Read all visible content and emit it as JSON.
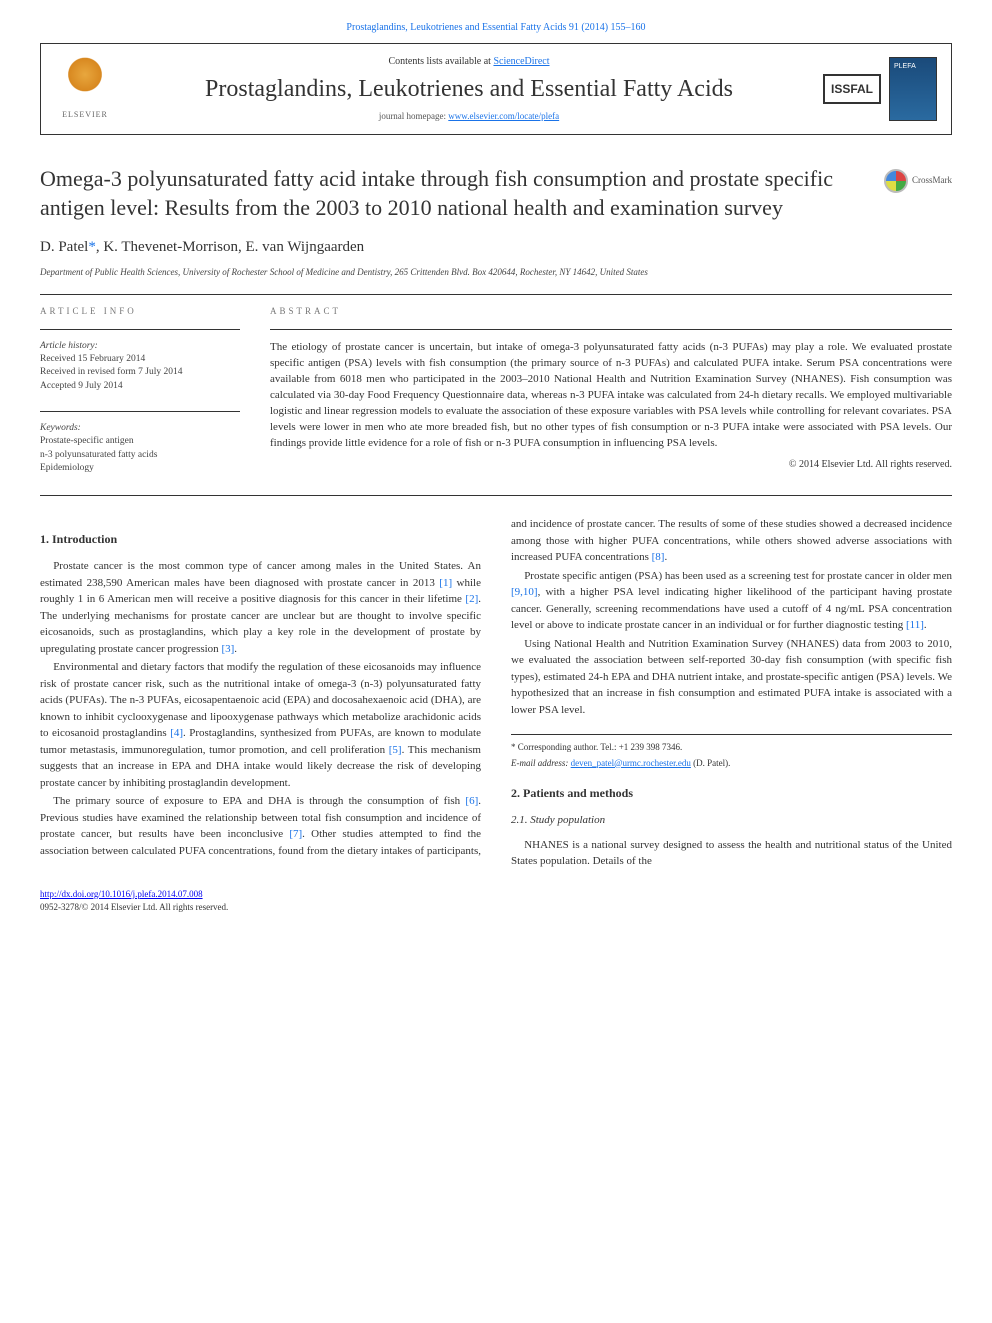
{
  "top_citation": "Prostaglandins, Leukotrienes and Essential Fatty Acids 91 (2014) 155–160",
  "header": {
    "contents_prefix": "Contents lists available at ",
    "contents_link": "ScienceDirect",
    "journal_name": "Prostaglandins, Leukotrienes and Essential Fatty Acids",
    "homepage_prefix": "journal homepage: ",
    "homepage_url": "www.elsevier.com/locate/plefa",
    "elsevier_label": "ELSEVIER",
    "issfal_label": "ISSFAL"
  },
  "article": {
    "title": "Omega-3 polyunsaturated fatty acid intake through fish consumption and prostate specific antigen level: Results from the 2003 to 2010 national health and examination survey",
    "crossmark": "CrossMark",
    "authors_html": "D. Patel",
    "author_marker": "*",
    "authors_rest": ", K. Thevenet-Morrison, E. van Wijngaarden",
    "affiliation": "Department of Public Health Sciences, University of Rochester School of Medicine and Dentistry, 265 Crittenden Blvd. Box 420644, Rochester, NY 14642, United States"
  },
  "meta": {
    "article_info_label": "ARTICLE INFO",
    "abstract_label": "ABSTRACT",
    "history_label": "Article history:",
    "received": "Received 15 February 2014",
    "revised": "Received in revised form 7 July 2014",
    "accepted": "Accepted 9 July 2014",
    "keywords_label": "Keywords:",
    "kw1": "Prostate-specific antigen",
    "kw2": "n-3 polyunsaturated fatty acids",
    "kw3": "Epidemiology"
  },
  "abstract": "The etiology of prostate cancer is uncertain, but intake of omega-3 polyunsaturated fatty acids (n-3 PUFAs) may play a role. We evaluated prostate specific antigen (PSA) levels with fish consumption (the primary source of n-3 PUFAs) and calculated PUFA intake. Serum PSA concentrations were available from 6018 men who participated in the 2003–2010 National Health and Nutrition Examination Survey (NHANES). Fish consumption was calculated via 30-day Food Frequency Questionnaire data, whereas n-3 PUFA intake was calculated from 24-h dietary recalls. We employed multivariable logistic and linear regression models to evaluate the association of these exposure variables with PSA levels while controlling for relevant covariates. PSA levels were lower in men who ate more breaded fish, but no other types of fish consumption or n-3 PUFA intake were associated with PSA levels. Our findings provide little evidence for a role of fish or n-3 PUFA consumption in influencing PSA levels.",
  "copyright": "© 2014 Elsevier Ltd. All rights reserved.",
  "sections": {
    "s1_title": "1. Introduction",
    "s1_p1": "Prostate cancer is the most common type of cancer among males in the United States. An estimated 238,590 American males have been diagnosed with prostate cancer in 2013 ",
    "s1_p1_ref1": "[1]",
    "s1_p1b": " while roughly 1 in 6 American men will receive a positive diagnosis for this cancer in their lifetime ",
    "s1_p1_ref2": "[2]",
    "s1_p1c": ". The underlying mechanisms for prostate cancer are unclear but are thought to involve specific eicosanoids, such as prostaglandins, which play a key role in the development of prostate by upregulating prostate cancer progression ",
    "s1_p1_ref3": "[3]",
    "s1_p1d": ".",
    "s1_p2": "Environmental and dietary factors that modify the regulation of these eicosanoids may influence risk of prostate cancer risk, such as the nutritional intake of omega-3 (n-3) polyunsaturated fatty acids (PUFAs). The n-3 PUFAs, eicosapentaenoic acid (EPA) and docosahexaenoic acid (DHA), are known to inhibit cyclooxygenase and lipooxygenase pathways which metabolize arachidonic acids to eicosanoid prostaglandins ",
    "s1_p2_ref4": "[4]",
    "s1_p2b": ". Prostaglandins, synthesized from PUFAs, are known to modulate tumor metastasis, immunoregulation, tumor promotion, and cell proliferation ",
    "s1_p2_ref5": "[5]",
    "s1_p2c": ". This mechanism suggests that an increase in EPA and DHA intake would likely decrease the risk of developing prostate cancer by inhibiting prostaglandin development.",
    "s1_p3": "The primary source of exposure to EPA and DHA is through the consumption of fish ",
    "s1_p3_ref6": "[6]",
    "s1_p3b": ". Previous studies have examined the relationship between total fish consumption and incidence of prostate cancer, but results have been inconclusive ",
    "s1_p3_ref7": "[7]",
    "s1_p3c": ". Other studies attempted to find the association between calculated PUFA concentrations, found from the dietary intakes of participants, and incidence of prostate cancer. The results of some of these studies showed a decreased incidence among those with higher PUFA concentrations, while others showed adverse associations with increased PUFA concentrations ",
    "s1_p3_ref8": "[8]",
    "s1_p3d": ".",
    "s1_p4": "Prostate specific antigen (PSA) has been used as a screening test for prostate cancer in older men ",
    "s1_p4_ref910": "[9,10]",
    "s1_p4b": ", with a higher PSA level indicating higher likelihood of the participant having prostate cancer. Generally, screening recommendations have used a cutoff of 4 ng/mL PSA concentration level or above to indicate prostate cancer in an individual or for further diagnostic testing ",
    "s1_p4_ref11": "[11]",
    "s1_p4c": ".",
    "s1_p5": "Using National Health and Nutrition Examination Survey (NHANES) data from 2003 to 2010, we evaluated the association between self-reported 30-day fish consumption (with specific fish types), estimated 24-h EPA and DHA nutrient intake, and prostate-specific antigen (PSA) levels. We hypothesized that an increase in fish consumption and estimated PUFA intake is associated with a lower PSA level.",
    "s2_title": "2. Patients and methods",
    "s21_title": "2.1. Study population",
    "s21_p1": "NHANES is a national survey designed to assess the health and nutritional status of the United States population. Details of the"
  },
  "footnote": {
    "corr": "* Corresponding author. Tel.: +1 239 398 7346.",
    "email_label": "E-mail address: ",
    "email": "deven_patel@urmc.rochester.edu",
    "email_suffix": " (D. Patel)."
  },
  "footer": {
    "doi": "http://dx.doi.org/10.1016/j.plefa.2014.07.008",
    "issn_line": "0952-3278/© 2014 Elsevier Ltd. All rights reserved."
  }
}
